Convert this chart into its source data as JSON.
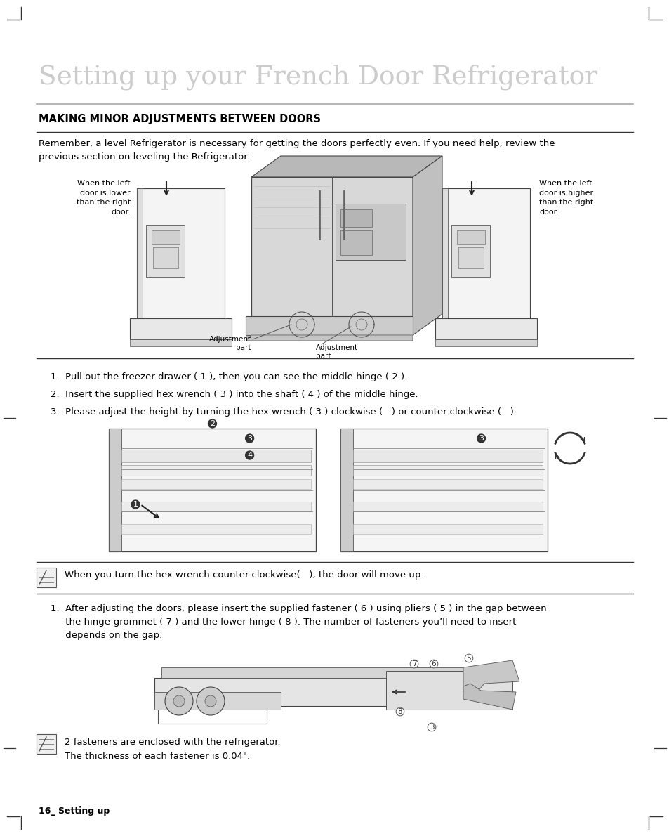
{
  "page_bg": "#ffffff",
  "page_width": 9.54,
  "page_height": 11.9,
  "dpi": 100,
  "title": "Setting up your French Door Refrigerator",
  "section_title": "MAKING MINOR ADJUSTMENTS BETWEEN DOORS",
  "body_text_1": "Remember, a level Refrigerator is necessary for getting the doors perfectly even. If you need help, review the\nprevious section on leveling the Refrigerator.",
  "steps_1": [
    "1.  Pull out the freezer drawer ( 1 ), then you can see the middle hinge ( 2 ) .",
    "2.  Insert the supplied hex wrench ( 3 ) into the shaft ( 4 ) of the middle hinge.",
    "3.  Please adjust the height by turning the hex wrench ( 3 ) clockwise (   ) or counter-clockwise (   )."
  ],
  "note_1_text": "When you turn the hex wrench counter-clockwise(   ), the door will move up.",
  "steps_2_text": "1.  After adjusting the doors, please insert the supplied fastener ( 6 ) using pliers ( 5 ) in the gap between\n     the hinge-grommet ( 7 ) and the lower hinge ( 8 ). The number of fasteners you’ll need to insert\n     depends on the gap.",
  "note_2_line1": "2 fasteners are enclosed with the refrigerator.",
  "note_2_line2": "The thickness of each fastener is 0.04\".",
  "footer_text": "16_ Setting up",
  "left_caption_text": "When the left\ndoor is lower\nthan the right\ndoor.",
  "right_caption_text": "When the left\ndoor is higher\nthan the right\ndoor.",
  "adj_left_text": "Adjustment\npart",
  "adj_right_text": "Adjustment\npart"
}
